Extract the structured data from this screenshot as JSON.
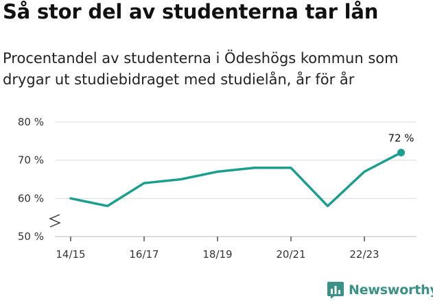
{
  "title": "Så stor del av studenterna tar lån",
  "subtitle": "Procentandel av studenterna i Ödeshögs kommun som drygar ut studiebidraget med studielån, år för år",
  "brand": {
    "name": "Newsworthy",
    "icon": "newsworthy-logo-icon",
    "color": "#3a9188"
  },
  "colors": {
    "line": "#1a9e8f",
    "grid": "#dddddd",
    "axis": "#333333"
  },
  "chart_data": {
    "type": "line",
    "x": [
      "14/15",
      "15/16",
      "16/17",
      "17/18",
      "18/19",
      "19/20",
      "20/21",
      "21/22",
      "22/23",
      "23/24"
    ],
    "x_tick_labels": [
      "14/15",
      "16/17",
      "18/19",
      "20/21",
      "22/23"
    ],
    "series": [
      {
        "values": [
          60,
          58,
          64,
          65,
          67,
          68,
          68,
          58,
          67,
          72
        ]
      }
    ],
    "y_ticks": [
      50,
      60,
      70,
      80
    ],
    "y_tick_labels": [
      "50 %",
      "60 %",
      "70 %",
      "80 %"
    ],
    "ylim": [
      50,
      80
    ],
    "y_axis_break": true,
    "end_label": "72 %",
    "grid": "horizontal",
    "xlabel": "",
    "ylabel": ""
  }
}
